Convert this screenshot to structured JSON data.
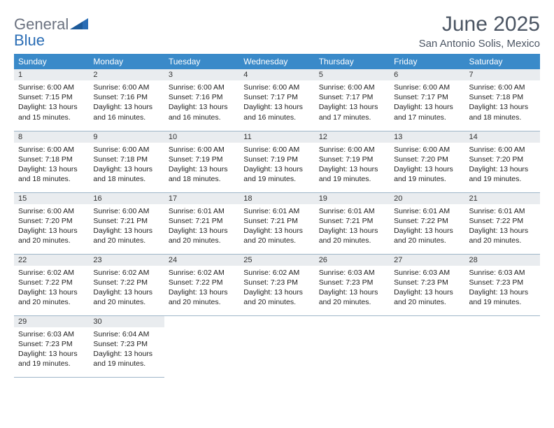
{
  "brand": {
    "word1": "General",
    "word2": "Blue"
  },
  "colors": {
    "header_bg": "#3a8ac9",
    "header_fg": "#ffffff",
    "daynum_bg": "#e9ecef",
    "cell_border": "#9fb6c8",
    "logo_gray": "#6b7280",
    "logo_blue": "#2a6db5",
    "title_color": "#4b5563"
  },
  "title": "June 2025",
  "location": "San Antonio Solis, Mexico",
  "weekdays": [
    "Sunday",
    "Monday",
    "Tuesday",
    "Wednesday",
    "Thursday",
    "Friday",
    "Saturday"
  ],
  "days": [
    {
      "n": 1,
      "sr": "6:00 AM",
      "ss": "7:15 PM",
      "dl": "13 hours and 15 minutes."
    },
    {
      "n": 2,
      "sr": "6:00 AM",
      "ss": "7:16 PM",
      "dl": "13 hours and 16 minutes."
    },
    {
      "n": 3,
      "sr": "6:00 AM",
      "ss": "7:16 PM",
      "dl": "13 hours and 16 minutes."
    },
    {
      "n": 4,
      "sr": "6:00 AM",
      "ss": "7:17 PM",
      "dl": "13 hours and 16 minutes."
    },
    {
      "n": 5,
      "sr": "6:00 AM",
      "ss": "7:17 PM",
      "dl": "13 hours and 17 minutes."
    },
    {
      "n": 6,
      "sr": "6:00 AM",
      "ss": "7:17 PM",
      "dl": "13 hours and 17 minutes."
    },
    {
      "n": 7,
      "sr": "6:00 AM",
      "ss": "7:18 PM",
      "dl": "13 hours and 18 minutes."
    },
    {
      "n": 8,
      "sr": "6:00 AM",
      "ss": "7:18 PM",
      "dl": "13 hours and 18 minutes."
    },
    {
      "n": 9,
      "sr": "6:00 AM",
      "ss": "7:18 PM",
      "dl": "13 hours and 18 minutes."
    },
    {
      "n": 10,
      "sr": "6:00 AM",
      "ss": "7:19 PM",
      "dl": "13 hours and 18 minutes."
    },
    {
      "n": 11,
      "sr": "6:00 AM",
      "ss": "7:19 PM",
      "dl": "13 hours and 19 minutes."
    },
    {
      "n": 12,
      "sr": "6:00 AM",
      "ss": "7:19 PM",
      "dl": "13 hours and 19 minutes."
    },
    {
      "n": 13,
      "sr": "6:00 AM",
      "ss": "7:20 PM",
      "dl": "13 hours and 19 minutes."
    },
    {
      "n": 14,
      "sr": "6:00 AM",
      "ss": "7:20 PM",
      "dl": "13 hours and 19 minutes."
    },
    {
      "n": 15,
      "sr": "6:00 AM",
      "ss": "7:20 PM",
      "dl": "13 hours and 20 minutes."
    },
    {
      "n": 16,
      "sr": "6:00 AM",
      "ss": "7:21 PM",
      "dl": "13 hours and 20 minutes."
    },
    {
      "n": 17,
      "sr": "6:01 AM",
      "ss": "7:21 PM",
      "dl": "13 hours and 20 minutes."
    },
    {
      "n": 18,
      "sr": "6:01 AM",
      "ss": "7:21 PM",
      "dl": "13 hours and 20 minutes."
    },
    {
      "n": 19,
      "sr": "6:01 AM",
      "ss": "7:21 PM",
      "dl": "13 hours and 20 minutes."
    },
    {
      "n": 20,
      "sr": "6:01 AM",
      "ss": "7:22 PM",
      "dl": "13 hours and 20 minutes."
    },
    {
      "n": 21,
      "sr": "6:01 AM",
      "ss": "7:22 PM",
      "dl": "13 hours and 20 minutes."
    },
    {
      "n": 22,
      "sr": "6:02 AM",
      "ss": "7:22 PM",
      "dl": "13 hours and 20 minutes."
    },
    {
      "n": 23,
      "sr": "6:02 AM",
      "ss": "7:22 PM",
      "dl": "13 hours and 20 minutes."
    },
    {
      "n": 24,
      "sr": "6:02 AM",
      "ss": "7:22 PM",
      "dl": "13 hours and 20 minutes."
    },
    {
      "n": 25,
      "sr": "6:02 AM",
      "ss": "7:23 PM",
      "dl": "13 hours and 20 minutes."
    },
    {
      "n": 26,
      "sr": "6:03 AM",
      "ss": "7:23 PM",
      "dl": "13 hours and 20 minutes."
    },
    {
      "n": 27,
      "sr": "6:03 AM",
      "ss": "7:23 PM",
      "dl": "13 hours and 20 minutes."
    },
    {
      "n": 28,
      "sr": "6:03 AM",
      "ss": "7:23 PM",
      "dl": "13 hours and 19 minutes."
    },
    {
      "n": 29,
      "sr": "6:03 AM",
      "ss": "7:23 PM",
      "dl": "13 hours and 19 minutes."
    },
    {
      "n": 30,
      "sr": "6:04 AM",
      "ss": "7:23 PM",
      "dl": "13 hours and 19 minutes."
    }
  ],
  "labels": {
    "sunrise": "Sunrise:",
    "sunset": "Sunset:",
    "daylight": "Daylight:"
  },
  "layout": {
    "start_weekday": 0,
    "rows": 5,
    "cols": 7
  }
}
